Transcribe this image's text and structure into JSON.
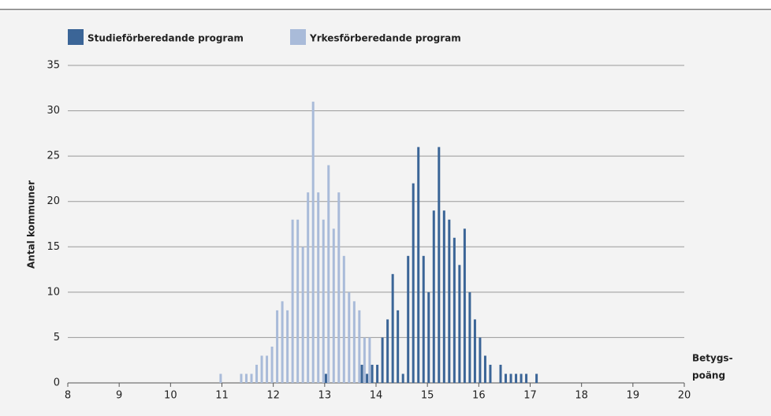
{
  "chart_data": {
    "type": "bar",
    "ylabel": "Antal kommuner",
    "xlabel": [
      "Betygs-",
      "poäng"
    ],
    "x": [
      11.0,
      11.1,
      11.2,
      11.3,
      11.4,
      11.5,
      11.6,
      11.7,
      11.8,
      11.9,
      12.0,
      12.1,
      12.2,
      12.3,
      12.4,
      12.5,
      12.6,
      12.7,
      12.8,
      12.9,
      13.0,
      13.1,
      13.2,
      13.3,
      13.4,
      13.5,
      13.6,
      13.7,
      13.8,
      13.9,
      14.0,
      14.1,
      14.2,
      14.3,
      14.4,
      14.5,
      14.6,
      14.7,
      14.8,
      14.9,
      15.0,
      15.1,
      15.2,
      15.3,
      15.4,
      15.5,
      15.6,
      15.7,
      15.8,
      15.9,
      16.0,
      16.1,
      16.2,
      16.3,
      16.4,
      16.5,
      16.6,
      16.7,
      16.8,
      16.9,
      17.0,
      17.1
    ],
    "series": [
      {
        "name": "Studieförberedande program",
        "color": "#3b6597",
        "values": [
          null,
          null,
          null,
          null,
          null,
          null,
          null,
          null,
          null,
          null,
          null,
          null,
          null,
          null,
          null,
          null,
          null,
          null,
          null,
          null,
          1,
          null,
          null,
          null,
          null,
          null,
          null,
          2,
          1,
          2,
          2,
          5,
          7,
          12,
          8,
          1,
          14,
          22,
          26,
          14,
          10,
          19,
          26,
          19,
          18,
          16,
          13,
          17,
          10,
          7,
          5,
          3,
          2,
          null,
          2,
          1,
          1,
          1,
          1,
          1,
          null,
          1
        ]
      },
      {
        "name": "Yrkesförberedande program",
        "color": "#a9bbd9",
        "values": [
          1,
          null,
          null,
          null,
          1,
          1,
          1,
          2,
          3,
          3,
          4,
          8,
          9,
          8,
          18,
          18,
          15,
          21,
          31,
          21,
          18,
          24,
          17,
          21,
          14,
          10,
          9,
          8,
          5,
          5,
          null,
          null,
          null,
          null,
          null,
          null,
          null,
          null,
          null,
          null,
          null,
          null,
          null,
          null,
          null,
          null,
          null,
          null,
          null,
          null,
          null,
          null,
          null,
          null,
          null,
          null,
          null,
          null,
          null,
          null,
          null,
          null
        ]
      }
    ],
    "xlim": [
      8,
      20
    ],
    "xticks": [
      8,
      9,
      10,
      11,
      12,
      13,
      14,
      15,
      16,
      17,
      18,
      19,
      20
    ],
    "ylim": [
      0,
      35
    ],
    "yticks": [
      0,
      5,
      10,
      15,
      20,
      25,
      30,
      35
    ],
    "grid": true
  }
}
